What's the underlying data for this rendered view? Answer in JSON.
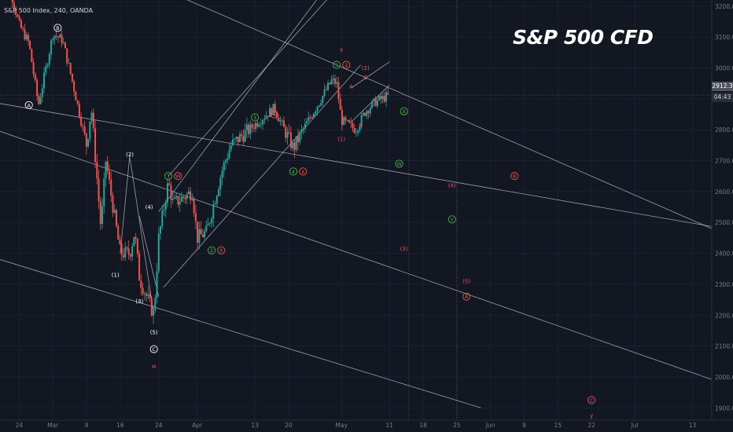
{
  "header": {
    "symbol_text": "S&P 500 Index, 240, OANDA",
    "title": "S&P 500 CFD",
    "last_price": "2912.3",
    "countdown": "04:43"
  },
  "colors": {
    "background": "#131722",
    "up_candle": "#26a69a",
    "down_candle": "#ef5350",
    "green_label": "#4caf50",
    "red_label": "#ef5350",
    "white_label": "#ffffff",
    "trendline": "#c8ccd6",
    "axis_text": "#787b86"
  },
  "chart_data": {
    "type": "candlestick",
    "instrument": "S&P 500 Index",
    "interval": "240",
    "source": "OANDA",
    "y_axis": {
      "min": 1860,
      "max": 3220,
      "ticks": [
        1900,
        2000,
        2100,
        2200,
        2300,
        2400,
        2500,
        2600,
        2700,
        2800,
        2900,
        3000,
        3100,
        3200
      ]
    },
    "y_tick_labels": [
      "1900.0",
      "2000.0",
      "2100.0",
      "2200.0",
      "2300.0",
      "2400.0",
      "2500.0",
      "2600.0",
      "2700.0",
      "2800.0",
      "2900.0",
      "3000.0",
      "3100.0",
      "3200.0"
    ],
    "x_axis": {
      "start_date": "2020-02-20",
      "end_date": "2020-07-17",
      "tick_labels": [
        "24",
        "Mar",
        "9",
        "16",
        "24",
        "Apr",
        "13",
        "20",
        "May",
        "11",
        "18",
        "25",
        "Jun",
        "8",
        "15",
        "22",
        "Jul",
        "13"
      ],
      "tick_dates": [
        "2020-02-24",
        "2020-03-02",
        "2020-03-09",
        "2020-03-16",
        "2020-03-24",
        "2020-04-01",
        "2020-04-13",
        "2020-04-20",
        "2020-05-01",
        "2020-05-11",
        "2020-05-18",
        "2020-05-25",
        "2020-06-01",
        "2020-06-08",
        "2020-06-15",
        "2020-06-22",
        "2020-07-01",
        "2020-07-13"
      ]
    },
    "price_path": [
      [
        "2020-02-20",
        3380
      ],
      [
        "2020-02-24",
        3140
      ],
      [
        "2020-02-26",
        3080
      ],
      [
        "2020-02-28",
        2880
      ],
      [
        "2020-03-02",
        3110
      ],
      [
        "2020-03-04",
        3090
      ],
      [
        "2020-03-06",
        2960
      ],
      [
        "2020-03-09",
        2750
      ],
      [
        "2020-03-10",
        2870
      ],
      [
        "2020-03-12",
        2480
      ],
      [
        "2020-03-13",
        2700
      ],
      [
        "2020-03-16",
        2400
      ],
      [
        "2020-03-18",
        2400
      ],
      [
        "2020-03-19",
        2470
      ],
      [
        "2020-03-20",
        2320
      ],
      [
        "2020-03-23",
        2200
      ],
      [
        "2020-03-24",
        2450
      ],
      [
        "2020-03-26",
        2630
      ],
      [
        "2020-03-27",
        2560
      ],
      [
        "2020-03-31",
        2600
      ],
      [
        "2020-04-01",
        2450
      ],
      [
        "2020-04-03",
        2470
      ],
      [
        "2020-04-06",
        2660
      ],
      [
        "2020-04-08",
        2750
      ],
      [
        "2020-04-14",
        2830
      ],
      [
        "2020-04-17",
        2870
      ],
      [
        "2020-04-21",
        2740
      ],
      [
        "2020-04-23",
        2800
      ],
      [
        "2020-04-29",
        2960
      ],
      [
        "2020-04-30",
        2950
      ],
      [
        "2020-05-01",
        2830
      ],
      [
        "2020-05-04",
        2800
      ],
      [
        "2020-05-06",
        2860
      ],
      [
        "2020-05-08",
        2890
      ],
      [
        "2020-05-11",
        2912
      ]
    ],
    "wave_labels": [
      {
        "text": "A",
        "date": "2020-02-26",
        "price": 2880,
        "color": "white",
        "circled": true
      },
      {
        "text": "B",
        "date": "2020-03-03",
        "price": 3130,
        "color": "white",
        "circled": true
      },
      {
        "text": "(2)",
        "date": "2020-03-18",
        "price": 2720,
        "color": "white",
        "circled": false
      },
      {
        "text": "(4)",
        "date": "2020-03-22",
        "price": 2550,
        "color": "white",
        "circled": false
      },
      {
        "text": "(1)",
        "date": "2020-03-15",
        "price": 2330,
        "color": "white",
        "circled": false
      },
      {
        "text": "(3)",
        "date": "2020-03-20",
        "price": 2245,
        "color": "white",
        "circled": false
      },
      {
        "text": "(5)",
        "date": "2020-03-23",
        "price": 2145,
        "color": "white",
        "circled": false
      },
      {
        "text": "C",
        "date": "2020-03-23",
        "price": 2090,
        "color": "white",
        "circled": true
      },
      {
        "text": "w",
        "date": "2020-03-23",
        "price": 2035,
        "color": "red",
        "circled": false
      },
      {
        "text": "1",
        "date": "2020-03-26",
        "price": 2650,
        "color": "green",
        "circled": true
      },
      {
        "text": "W",
        "date": "2020-03-28",
        "price": 2650,
        "color": "red",
        "circled": true
      },
      {
        "text": "2",
        "date": "2020-04-04",
        "price": 2410,
        "color": "green",
        "circled": true
      },
      {
        "text": "X",
        "date": "2020-04-06",
        "price": 2410,
        "color": "red",
        "circled": true
      },
      {
        "text": "3",
        "date": "2020-04-13",
        "price": 2840,
        "color": "green",
        "circled": true
      },
      {
        "text": "Y",
        "date": "2020-04-17",
        "price": 2850,
        "color": "red",
        "circled": true
      },
      {
        "text": "4",
        "date": "2020-04-21",
        "price": 2665,
        "color": "green",
        "circled": true
      },
      {
        "text": "X",
        "date": "2020-04-23",
        "price": 2665,
        "color": "red",
        "circled": true
      },
      {
        "text": "x",
        "date": "2020-05-01",
        "price": 3060,
        "color": "red",
        "circled": false
      },
      {
        "text": "5",
        "date": "2020-04-30",
        "price": 3010,
        "color": "green",
        "circled": true
      },
      {
        "text": "2",
        "date": "2020-05-02",
        "price": 3010,
        "color": "red",
        "circled": true
      },
      {
        "text": "(1)",
        "date": "2020-05-01",
        "price": 2770,
        "color": "red",
        "circled": false
      },
      {
        "text": "A",
        "date": "2020-05-03",
        "price": 2940,
        "color": "red",
        "circled": false
      },
      {
        "text": "B",
        "date": "2020-05-05",
        "price": 2815,
        "color": "red",
        "circled": false
      },
      {
        "text": "(2)",
        "date": "2020-05-06",
        "price": 3000,
        "color": "red",
        "circled": false
      },
      {
        "text": "C",
        "date": "2020-05-06",
        "price": 2970,
        "color": "red",
        "circled": false
      },
      {
        "text": "X",
        "date": "2020-05-14",
        "price": 2860,
        "color": "green",
        "circled": true
      },
      {
        "text": "W",
        "date": "2020-05-13",
        "price": 2690,
        "color": "green",
        "circled": true
      },
      {
        "text": "(3)",
        "date": "2020-05-14",
        "price": 2415,
        "color": "red",
        "circled": false
      },
      {
        "text": "(4)",
        "date": "2020-05-24",
        "price": 2620,
        "color": "red",
        "circled": false
      },
      {
        "text": "Y",
        "date": "2020-05-24",
        "price": 2510,
        "color": "green",
        "circled": true
      },
      {
        "text": "(5)",
        "date": "2020-05-27",
        "price": 2310,
        "color": "red",
        "circled": false
      },
      {
        "text": "A",
        "date": "2020-05-27",
        "price": 2260,
        "color": "red",
        "circled": true
      },
      {
        "text": "B",
        "date": "2020-06-06",
        "price": 2650,
        "color": "red",
        "circled": true
      },
      {
        "text": "C",
        "date": "2020-06-22",
        "price": 1925,
        "color": "red",
        "circled": true
      },
      {
        "text": "y",
        "date": "2020-06-22",
        "price": 1875,
        "color": "red",
        "circled": false
      }
    ]
  }
}
